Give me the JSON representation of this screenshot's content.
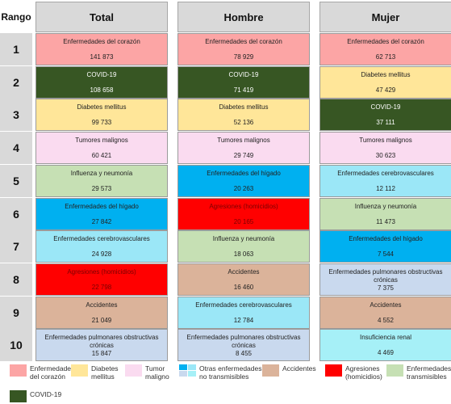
{
  "chart_data": {
    "type": "table",
    "rank_header": "Rango",
    "columns": [
      "Total",
      "Hombre",
      "Mujer"
    ],
    "ranks": [
      "1",
      "2",
      "3",
      "4",
      "5",
      "6",
      "7",
      "8",
      "9",
      "10"
    ],
    "rows": [
      [
        {
          "label": "Enfermedades del corazón",
          "value": "141 873",
          "category": "heart"
        },
        {
          "label": "Enfermedades del corazón",
          "value": "78 929",
          "category": "heart"
        },
        {
          "label": "Enfermedades del corazón",
          "value": "62 713",
          "category": "heart"
        }
      ],
      [
        {
          "label": "COVID-19",
          "value": "108 658",
          "category": "covid"
        },
        {
          "label": "COVID-19",
          "value": "71 419",
          "category": "covid"
        },
        {
          "label": "Diabetes mellitus",
          "value": "47 429",
          "category": "diabetes"
        }
      ],
      [
        {
          "label": "Diabetes mellitus",
          "value": "99 733",
          "category": "diabetes"
        },
        {
          "label": "Diabetes mellitus",
          "value": "52 136",
          "category": "diabetes"
        },
        {
          "label": "COVID-19",
          "value": "37 111",
          "category": "covid"
        }
      ],
      [
        {
          "label": "Tumores malignos",
          "value": "60 421",
          "category": "tumor"
        },
        {
          "label": "Tumores malignos",
          "value": "29 749",
          "category": "tumor"
        },
        {
          "label": "Tumores malignos",
          "value": "30 623",
          "category": "tumor"
        }
      ],
      [
        {
          "label": "Influenza y neumonía",
          "value": "29 573",
          "category": "influenza"
        },
        {
          "label": "Enfermedades del hígado",
          "value": "20 263",
          "category": "liver"
        },
        {
          "label": "Enfermedades cerebrovasculares",
          "value": "12 112",
          "category": "cerebro"
        }
      ],
      [
        {
          "label": "Enfermedades del hígado",
          "value": "27 842",
          "category": "liver"
        },
        {
          "label": "Agresiones (homicidios)",
          "value": "20 165",
          "category": "homicide"
        },
        {
          "label": "Influenza y neumonía",
          "value": "11 473",
          "category": "influenza"
        }
      ],
      [
        {
          "label": "Enfermedades cerebrovasculares",
          "value": "24 928",
          "category": "cerebro"
        },
        {
          "label": "Influenza y neumonía",
          "value": "18 063",
          "category": "influenza"
        },
        {
          "label": "Enfermedades del hígado",
          "value": "7 544",
          "category": "liver"
        }
      ],
      [
        {
          "label": "Agresiones (homicidios)",
          "value": "22 798",
          "category": "homicide"
        },
        {
          "label": "Accidentes",
          "value": "16 460",
          "category": "accident"
        },
        {
          "label": "Enfermedades pulmonares obstructivas crónicas",
          "value": "7 375",
          "category": "pulmonary"
        }
      ],
      [
        {
          "label": "Accidentes",
          "value": "21 049",
          "category": "accident"
        },
        {
          "label": "Enfermedades cerebrovasculares",
          "value": "12 784",
          "category": "cerebro"
        },
        {
          "label": "Accidentes",
          "value": "4 552",
          "category": "accident"
        }
      ],
      [
        {
          "label": "Enfermedades pulmonares obstructivas crónicas",
          "value": "15 847",
          "category": "pulmonary"
        },
        {
          "label": "Enfermedades pulmonares obstructivas crónicas",
          "value": "8 455",
          "category": "pulmonary"
        },
        {
          "label": "Insuficiencia renal",
          "value": "4 469",
          "category": "renal"
        }
      ]
    ],
    "category_colors": {
      "heart": "#fca5a5",
      "covid": "#375623",
      "diabetes": "#ffe699",
      "tumor": "#fadbf0",
      "influenza": "#c6e0b4",
      "liver": "#00b0f0",
      "cerebro": "#9be7f7",
      "homicide": "#ff0000",
      "accident": "#dbb39a",
      "pulmonary": "#c9d9ee",
      "renal": "#a6f0f7"
    },
    "legend": [
      {
        "label": "Enfermedades\ndel corazón",
        "color": "#fca5a5"
      },
      {
        "label": "Diabetes\nmellitus",
        "color": "#ffe699"
      },
      {
        "label": "Tumor\nmaligno",
        "color": "#fadbf0"
      },
      {
        "label": "Otras enfermedades\nno transmisibles",
        "colors": [
          "#00b0f0",
          "#9be7f7",
          "#c9d9ee",
          "#a6f0f7"
        ]
      },
      {
        "label": "Accidentes",
        "color": "#dbb39a"
      },
      {
        "label": "Agresiones\n(homicidios)",
        "color": "#ff0000"
      },
      {
        "label": "Enfermedades\ntransmisibles",
        "color": "#c6e0b4"
      },
      {
        "label": "COVID-19",
        "color": "#375623"
      }
    ]
  }
}
